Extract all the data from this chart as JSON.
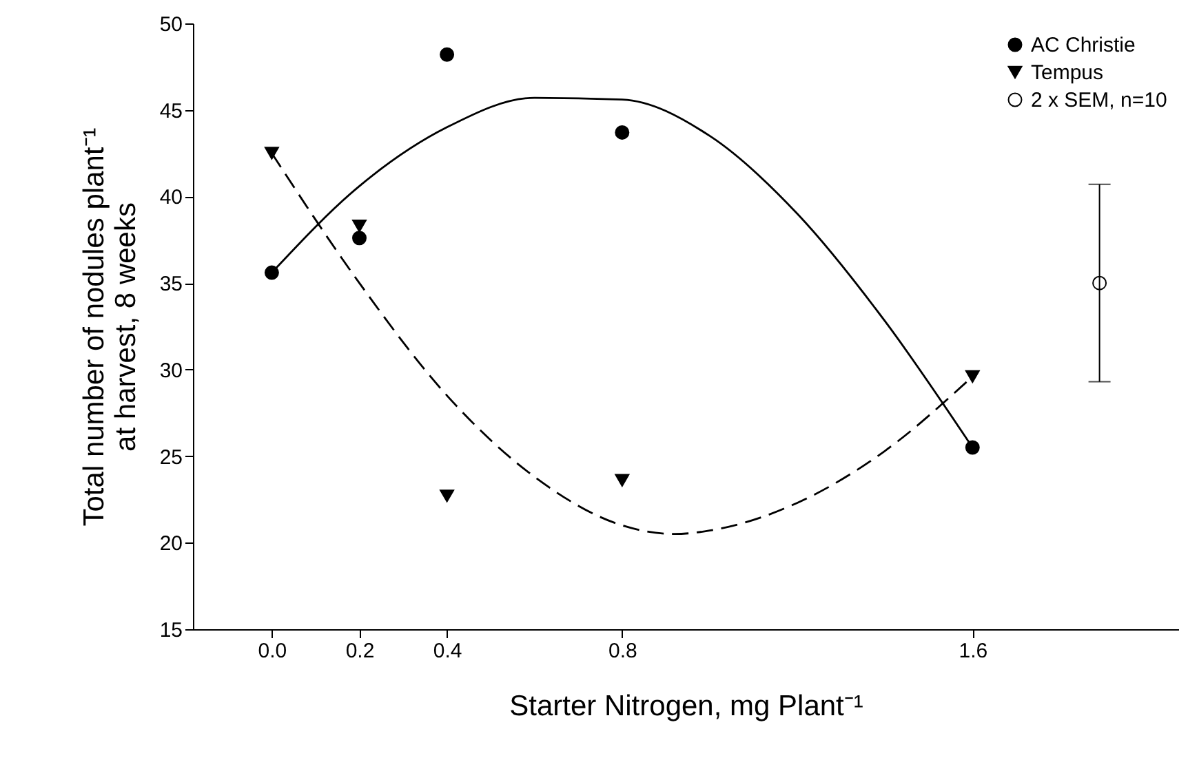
{
  "chart_data": {
    "type": "scatter",
    "xlabel": "Starter Nitrogen, mg Plant⁻¹",
    "ylabel": "Total number of nodules plant⁻¹\nat harvest, 8 weeks",
    "xlim": [
      -0.18,
      2.07
    ],
    "ylim": [
      15,
      50
    ],
    "xticks": [
      {
        "value": 0,
        "label": "0.0"
      },
      {
        "value": 0.2,
        "label": "0.2"
      },
      {
        "value": 0.4,
        "label": "0.4"
      },
      {
        "value": 0.8,
        "label": "0.8"
      },
      {
        "value": 1.6,
        "label": "1.6"
      }
    ],
    "yticks": [
      15,
      20,
      25,
      30,
      35,
      40,
      45,
      50
    ],
    "grid": false,
    "legend": "top right",
    "series": [
      {
        "name": "AC Christie",
        "marker": "circle",
        "color": "#000000",
        "x": [
          0,
          0.2,
          0.4,
          0.8,
          1.6
        ],
        "values": [
          35.6,
          37.6,
          48.2,
          43.7,
          25.5
        ]
      },
      {
        "name": "Tempus",
        "marker": "triangle",
        "color": "#000000",
        "x": [
          0,
          0.2,
          0.4,
          0.8,
          1.6
        ],
        "values": [
          42.5,
          38.3,
          22.7,
          23.6,
          29.6
        ]
      },
      {
        "name": "2 x SEM, n=10",
        "marker": "circle",
        "color": "#ffffff",
        "x": [
          1.89
        ],
        "values": [
          35
        ],
        "errors": [
          5.7
        ]
      },
      {
        "type": "line",
        "line_style": "solid",
        "color": "#000000",
        "marker": "none",
        "x": [
          0,
          0.2,
          0.4,
          0.6,
          0.8,
          1.0,
          1.2,
          1.4,
          1.6
        ],
        "values": [
          35.6,
          40.6,
          44.0,
          45.7,
          45.6,
          43.5,
          39.0,
          32.8,
          25.5
        ]
      },
      {
        "type": "line",
        "line_style": "dashed",
        "color": "#000000",
        "marker": "none",
        "x": [
          0,
          0.2,
          0.4,
          0.6,
          0.8,
          0.92,
          1.0,
          1.2,
          1.4,
          1.6
        ],
        "values": [
          42.5,
          35.0,
          28.5,
          23.8,
          21.0,
          20.5,
          20.7,
          22.3,
          25.3,
          29.6
        ]
      }
    ]
  }
}
